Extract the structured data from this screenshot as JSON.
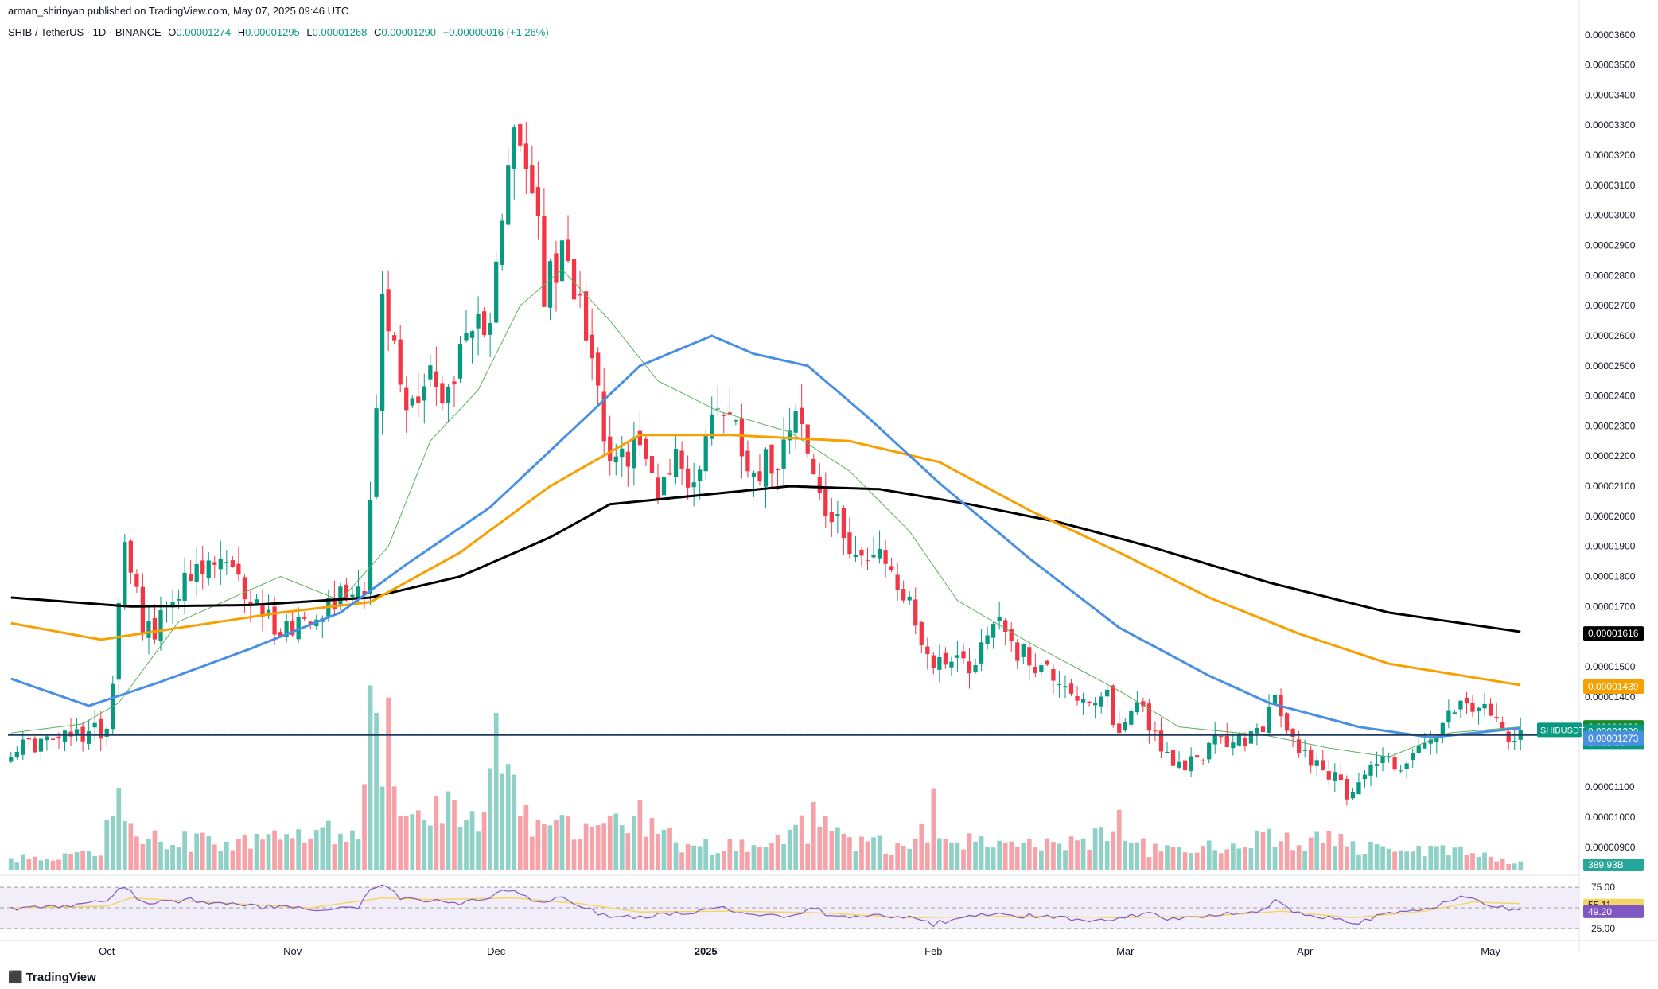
{
  "publisher_line": "arman_shirinyan published on TradingView.com, May 07, 2025 09:46 UTC",
  "legend": {
    "symbol": "SHIB / TetherUS · 1D · BINANCE",
    "open_key": "O",
    "open": "0.00001274",
    "high_key": "H",
    "high": "0.00001295",
    "low_key": "L",
    "low": "0.00001268",
    "close_key": "C",
    "close": "0.00001290",
    "change": "+0.00000016 (+1.26%)"
  },
  "branding": "TradingView",
  "colors": {
    "up": "#089981",
    "down": "#f23645",
    "up_volume": "#8fd1c6",
    "down_volume": "#f5a3a9",
    "sma200": "#000000",
    "ema200": "#f7a000",
    "ema50": "#4a90e2",
    "ema20": "#5fae5f",
    "support": "#1e3a5f",
    "rsi_line": "#7e57c2",
    "rsi_ma": "#f5d565",
    "rsi_band": "#ede7f6"
  },
  "chart_data": {
    "type": "candlestick",
    "symbol": "SHIBUSDT",
    "y_axis": {
      "min": 8.6e-06,
      "max": 3.61e-05,
      "ticks": [
        "0.00003600",
        "0.00003500",
        "0.00003400",
        "0.00003300",
        "0.00003200",
        "0.00003100",
        "0.00003000",
        "0.00002900",
        "0.00002800",
        "0.00002700",
        "0.00002600",
        "0.00002500",
        "0.00002400",
        "0.00002300",
        "0.00002200",
        "0.00002100",
        "0.00002000",
        "0.00001900",
        "0.00001800",
        "0.00001700",
        "0.00001500",
        "0.00001400",
        "0.00001100",
        "0.00001000",
        "0.00000900"
      ]
    },
    "x_axis": {
      "ticks": [
        "Oct",
        "Nov",
        "Dec",
        "2025",
        "Feb",
        "Mar",
        "Apr",
        "May"
      ],
      "positions": [
        16,
        47,
        81,
        116,
        154,
        186,
        216,
        247
      ]
    },
    "waypoints": [
      [
        0,
        1.23e-05
      ],
      [
        6,
        1.25e-05
      ],
      [
        13,
        1.28e-05
      ],
      [
        16,
        1.3e-05
      ],
      [
        17,
        1.47e-05
      ],
      [
        19,
        1.95e-05
      ],
      [
        22,
        1.65e-05
      ],
      [
        24,
        1.6e-05
      ],
      [
        27,
        1.75e-05
      ],
      [
        35,
        1.85e-05
      ],
      [
        39,
        1.75e-05
      ],
      [
        45,
        1.62e-05
      ],
      [
        52,
        1.7e-05
      ],
      [
        56,
        1.75e-05
      ],
      [
        59,
        1.78e-05
      ],
      [
        61,
        2.35e-05
      ],
      [
        62,
        2.7e-05
      ],
      [
        64,
        2.55e-05
      ],
      [
        66,
        2.35e-05
      ],
      [
        70,
        2.5e-05
      ],
      [
        72,
        2.35e-05
      ],
      [
        74,
        2.5e-05
      ],
      [
        77,
        2.57e-05
      ],
      [
        80,
        2.7e-05
      ],
      [
        81,
        2.9e-05
      ],
      [
        84,
        3.25e-05
      ],
      [
        87,
        3.1e-05
      ],
      [
        89,
        2.75e-05
      ],
      [
        92,
        2.85e-05
      ],
      [
        95,
        2.75e-05
      ],
      [
        97,
        2.55e-05
      ],
      [
        99,
        2.3e-05
      ],
      [
        101,
        2.15e-05
      ],
      [
        104,
        2.25e-05
      ],
      [
        108,
        2.1e-05
      ],
      [
        111,
        2.2e-05
      ],
      [
        114,
        2.1e-05
      ],
      [
        118,
        2.4e-05
      ],
      [
        121,
        2.3e-05
      ],
      [
        124,
        2.15e-05
      ],
      [
        128,
        2.2e-05
      ],
      [
        131,
        2.4e-05
      ],
      [
        133,
        2.2e-05
      ],
      [
        136,
        2e-05
      ],
      [
        140,
        1.92e-05
      ],
      [
        143,
        1.85e-05
      ],
      [
        146,
        1.85e-05
      ],
      [
        150,
        1.7e-05
      ],
      [
        154,
        1.5e-05
      ],
      [
        157,
        1.55e-05
      ],
      [
        160,
        1.5e-05
      ],
      [
        165,
        1.68e-05
      ],
      [
        168,
        1.55e-05
      ],
      [
        172,
        1.5e-05
      ],
      [
        176,
        1.45e-05
      ],
      [
        180,
        1.35e-05
      ],
      [
        183,
        1.4e-05
      ],
      [
        185,
        1.27e-05
      ],
      [
        188,
        1.4e-05
      ],
      [
        191,
        1.28e-05
      ],
      [
        194,
        1.15e-05
      ],
      [
        198,
        1.2e-05
      ],
      [
        201,
        1.25e-05
      ],
      [
        205,
        1.25e-05
      ],
      [
        208,
        1.28e-05
      ],
      [
        211,
        1.38e-05
      ],
      [
        214,
        1.25e-05
      ],
      [
        217,
        1.2e-05
      ],
      [
        220,
        1.15e-05
      ],
      [
        223,
        1.08e-05
      ],
      [
        226,
        1.15e-05
      ],
      [
        229,
        1.2e-05
      ],
      [
        232,
        1.17e-05
      ],
      [
        235,
        1.22e-05
      ],
      [
        238,
        1.27e-05
      ],
      [
        241,
        1.35e-05
      ],
      [
        244,
        1.37e-05
      ],
      [
        247,
        1.33e-05
      ],
      [
        250,
        1.28e-05
      ],
      [
        252,
        1.29e-05
      ]
    ],
    "volume_waypoints": [
      [
        0,
        10
      ],
      [
        15,
        14
      ],
      [
        17,
        60
      ],
      [
        18,
        62
      ],
      [
        19,
        40
      ],
      [
        22,
        30
      ],
      [
        35,
        25
      ],
      [
        50,
        28
      ],
      [
        58,
        42
      ],
      [
        60,
        130
      ],
      [
        61,
        150
      ],
      [
        62,
        115
      ],
      [
        63,
        130
      ],
      [
        64,
        100
      ],
      [
        66,
        50
      ],
      [
        74,
        60
      ],
      [
        78,
        40
      ],
      [
        80,
        70
      ],
      [
        81,
        145
      ],
      [
        82,
        100
      ],
      [
        83,
        75
      ],
      [
        84,
        65
      ],
      [
        86,
        50
      ],
      [
        90,
        45
      ],
      [
        95,
        30
      ],
      [
        100,
        40
      ],
      [
        105,
        55
      ],
      [
        110,
        30
      ],
      [
        115,
        22
      ],
      [
        125,
        20
      ],
      [
        133,
        40
      ],
      [
        135,
        60
      ],
      [
        137,
        30
      ],
      [
        150,
        20
      ],
      [
        153,
        40
      ],
      [
        154,
        100
      ],
      [
        155,
        30
      ],
      [
        165,
        20
      ],
      [
        180,
        25
      ],
      [
        184,
        40
      ],
      [
        186,
        45
      ],
      [
        190,
        20
      ],
      [
        205,
        22
      ],
      [
        210,
        30
      ],
      [
        215,
        22
      ],
      [
        220,
        28
      ],
      [
        222,
        30
      ],
      [
        224,
        20
      ],
      [
        240,
        18
      ],
      [
        252,
        6
      ]
    ],
    "volume_max": 150,
    "sma200_waypoints": [
      [
        0,
        1.73e-05
      ],
      [
        20,
        1.7e-05
      ],
      [
        40,
        1.705e-05
      ],
      [
        60,
        1.73e-05
      ],
      [
        75,
        1.8e-05
      ],
      [
        90,
        1.93e-05
      ],
      [
        100,
        2.04e-05
      ],
      [
        115,
        2.07e-05
      ],
      [
        130,
        2.1e-05
      ],
      [
        145,
        2.09e-05
      ],
      [
        160,
        2.04e-05
      ],
      [
        175,
        1.98e-05
      ],
      [
        190,
        1.9e-05
      ],
      [
        210,
        1.78e-05
      ],
      [
        230,
        1.68e-05
      ],
      [
        252,
        1.616e-05
      ]
    ],
    "ema200_waypoints": [
      [
        0,
        1.645e-05
      ],
      [
        15,
        1.59e-05
      ],
      [
        25,
        1.62e-05
      ],
      [
        45,
        1.68e-05
      ],
      [
        60,
        1.715e-05
      ],
      [
        75,
        1.88e-05
      ],
      [
        90,
        2.1e-05
      ],
      [
        105,
        2.27e-05
      ],
      [
        120,
        2.27e-05
      ],
      [
        140,
        2.25e-05
      ],
      [
        155,
        2.18e-05
      ],
      [
        170,
        2.02e-05
      ],
      [
        185,
        1.88e-05
      ],
      [
        200,
        1.73e-05
      ],
      [
        215,
        1.61e-05
      ],
      [
        230,
        1.51e-05
      ],
      [
        252,
        1.439e-05
      ]
    ],
    "ema50_waypoints": [
      [
        0,
        1.46e-05
      ],
      [
        13,
        1.37e-05
      ],
      [
        25,
        1.45e-05
      ],
      [
        40,
        1.56e-05
      ],
      [
        55,
        1.68e-05
      ],
      [
        66,
        1.84e-05
      ],
      [
        80,
        2.03e-05
      ],
      [
        96,
        2.33e-05
      ],
      [
        105,
        2.5e-05
      ],
      [
        117,
        2.6e-05
      ],
      [
        124,
        2.54e-05
      ],
      [
        133,
        2.5e-05
      ],
      [
        143,
        2.33e-05
      ],
      [
        155,
        2.11e-05
      ],
      [
        170,
        1.86e-05
      ],
      [
        185,
        1.63e-05
      ],
      [
        200,
        1.47e-05
      ],
      [
        210,
        1.38e-05
      ],
      [
        225,
        1.3e-05
      ],
      [
        237,
        1.265e-05
      ],
      [
        252,
        1.296e-05
      ]
    ],
    "ema20_waypoints": [
      [
        0,
        1.28e-05
      ],
      [
        12,
        1.31e-05
      ],
      [
        18,
        1.38e-05
      ],
      [
        28,
        1.65e-05
      ],
      [
        45,
        1.8e-05
      ],
      [
        55,
        1.72e-05
      ],
      [
        63,
        1.9e-05
      ],
      [
        70,
        2.25e-05
      ],
      [
        78,
        2.42e-05
      ],
      [
        85,
        2.7e-05
      ],
      [
        92,
        2.82e-05
      ],
      [
        100,
        2.65e-05
      ],
      [
        108,
        2.45e-05
      ],
      [
        118,
        2.35e-05
      ],
      [
        130,
        2.28e-05
      ],
      [
        140,
        2.15e-05
      ],
      [
        150,
        1.95e-05
      ],
      [
        158,
        1.72e-05
      ],
      [
        170,
        1.58e-05
      ],
      [
        185,
        1.42e-05
      ],
      [
        195,
        1.3e-05
      ],
      [
        210,
        1.27e-05
      ],
      [
        220,
        1.23e-05
      ],
      [
        230,
        1.2e-05
      ],
      [
        240,
        1.28e-05
      ],
      [
        252,
        1.3e-05
      ]
    ],
    "rsi_waypoints": [
      [
        0,
        48
      ],
      [
        10,
        52
      ],
      [
        16,
        58
      ],
      [
        18,
        75
      ],
      [
        20,
        70
      ],
      [
        22,
        55
      ],
      [
        30,
        60
      ],
      [
        40,
        52
      ],
      [
        50,
        48
      ],
      [
        58,
        50
      ],
      [
        60,
        72
      ],
      [
        62,
        78
      ],
      [
        65,
        62
      ],
      [
        75,
        55
      ],
      [
        80,
        62
      ],
      [
        82,
        72
      ],
      [
        84,
        70
      ],
      [
        88,
        55
      ],
      [
        92,
        64
      ],
      [
        95,
        52
      ],
      [
        100,
        38
      ],
      [
        105,
        40
      ],
      [
        110,
        42
      ],
      [
        118,
        50
      ],
      [
        122,
        45
      ],
      [
        130,
        38
      ],
      [
        134,
        52
      ],
      [
        137,
        38
      ],
      [
        145,
        40
      ],
      [
        150,
        38
      ],
      [
        154,
        30
      ],
      [
        158,
        38
      ],
      [
        165,
        42
      ],
      [
        170,
        40
      ],
      [
        175,
        38
      ],
      [
        180,
        35
      ],
      [
        185,
        38
      ],
      [
        190,
        42
      ],
      [
        195,
        35
      ],
      [
        200,
        42
      ],
      [
        208,
        46
      ],
      [
        211,
        58
      ],
      [
        214,
        44
      ],
      [
        220,
        38
      ],
      [
        224,
        30
      ],
      [
        228,
        40
      ],
      [
        236,
        48
      ],
      [
        240,
        58
      ],
      [
        243,
        64
      ],
      [
        246,
        55
      ],
      [
        250,
        48
      ],
      [
        252,
        49.2
      ]
    ],
    "rsi_ma_waypoints": [
      [
        0,
        50
      ],
      [
        16,
        52
      ],
      [
        20,
        62
      ],
      [
        30,
        58
      ],
      [
        50,
        50
      ],
      [
        62,
        62
      ],
      [
        70,
        60
      ],
      [
        84,
        62
      ],
      [
        95,
        55
      ],
      [
        105,
        45
      ],
      [
        120,
        46
      ],
      [
        135,
        44
      ],
      [
        150,
        38
      ],
      [
        170,
        40
      ],
      [
        185,
        38
      ],
      [
        200,
        40
      ],
      [
        212,
        46
      ],
      [
        224,
        38
      ],
      [
        236,
        46
      ],
      [
        244,
        57
      ],
      [
        252,
        55.11
      ]
    ],
    "rsi_axis": {
      "min": 20,
      "max": 80,
      "ticks": [
        "75.00",
        "25.00"
      ]
    },
    "price_labels": {
      "sma200": "0.00001616",
      "ema200": "0.00001439",
      "ema50": "0.00001296",
      "last_price": "0.00001290",
      "countdown": "14:13:55",
      "support": "0.00001273",
      "volume": "389.93B",
      "rsi_ma": "55.11",
      "rsi": "49.20"
    },
    "symbol_tag": "SHIBUSDT",
    "support_level": 1.273e-05,
    "num_bars": 253
  }
}
